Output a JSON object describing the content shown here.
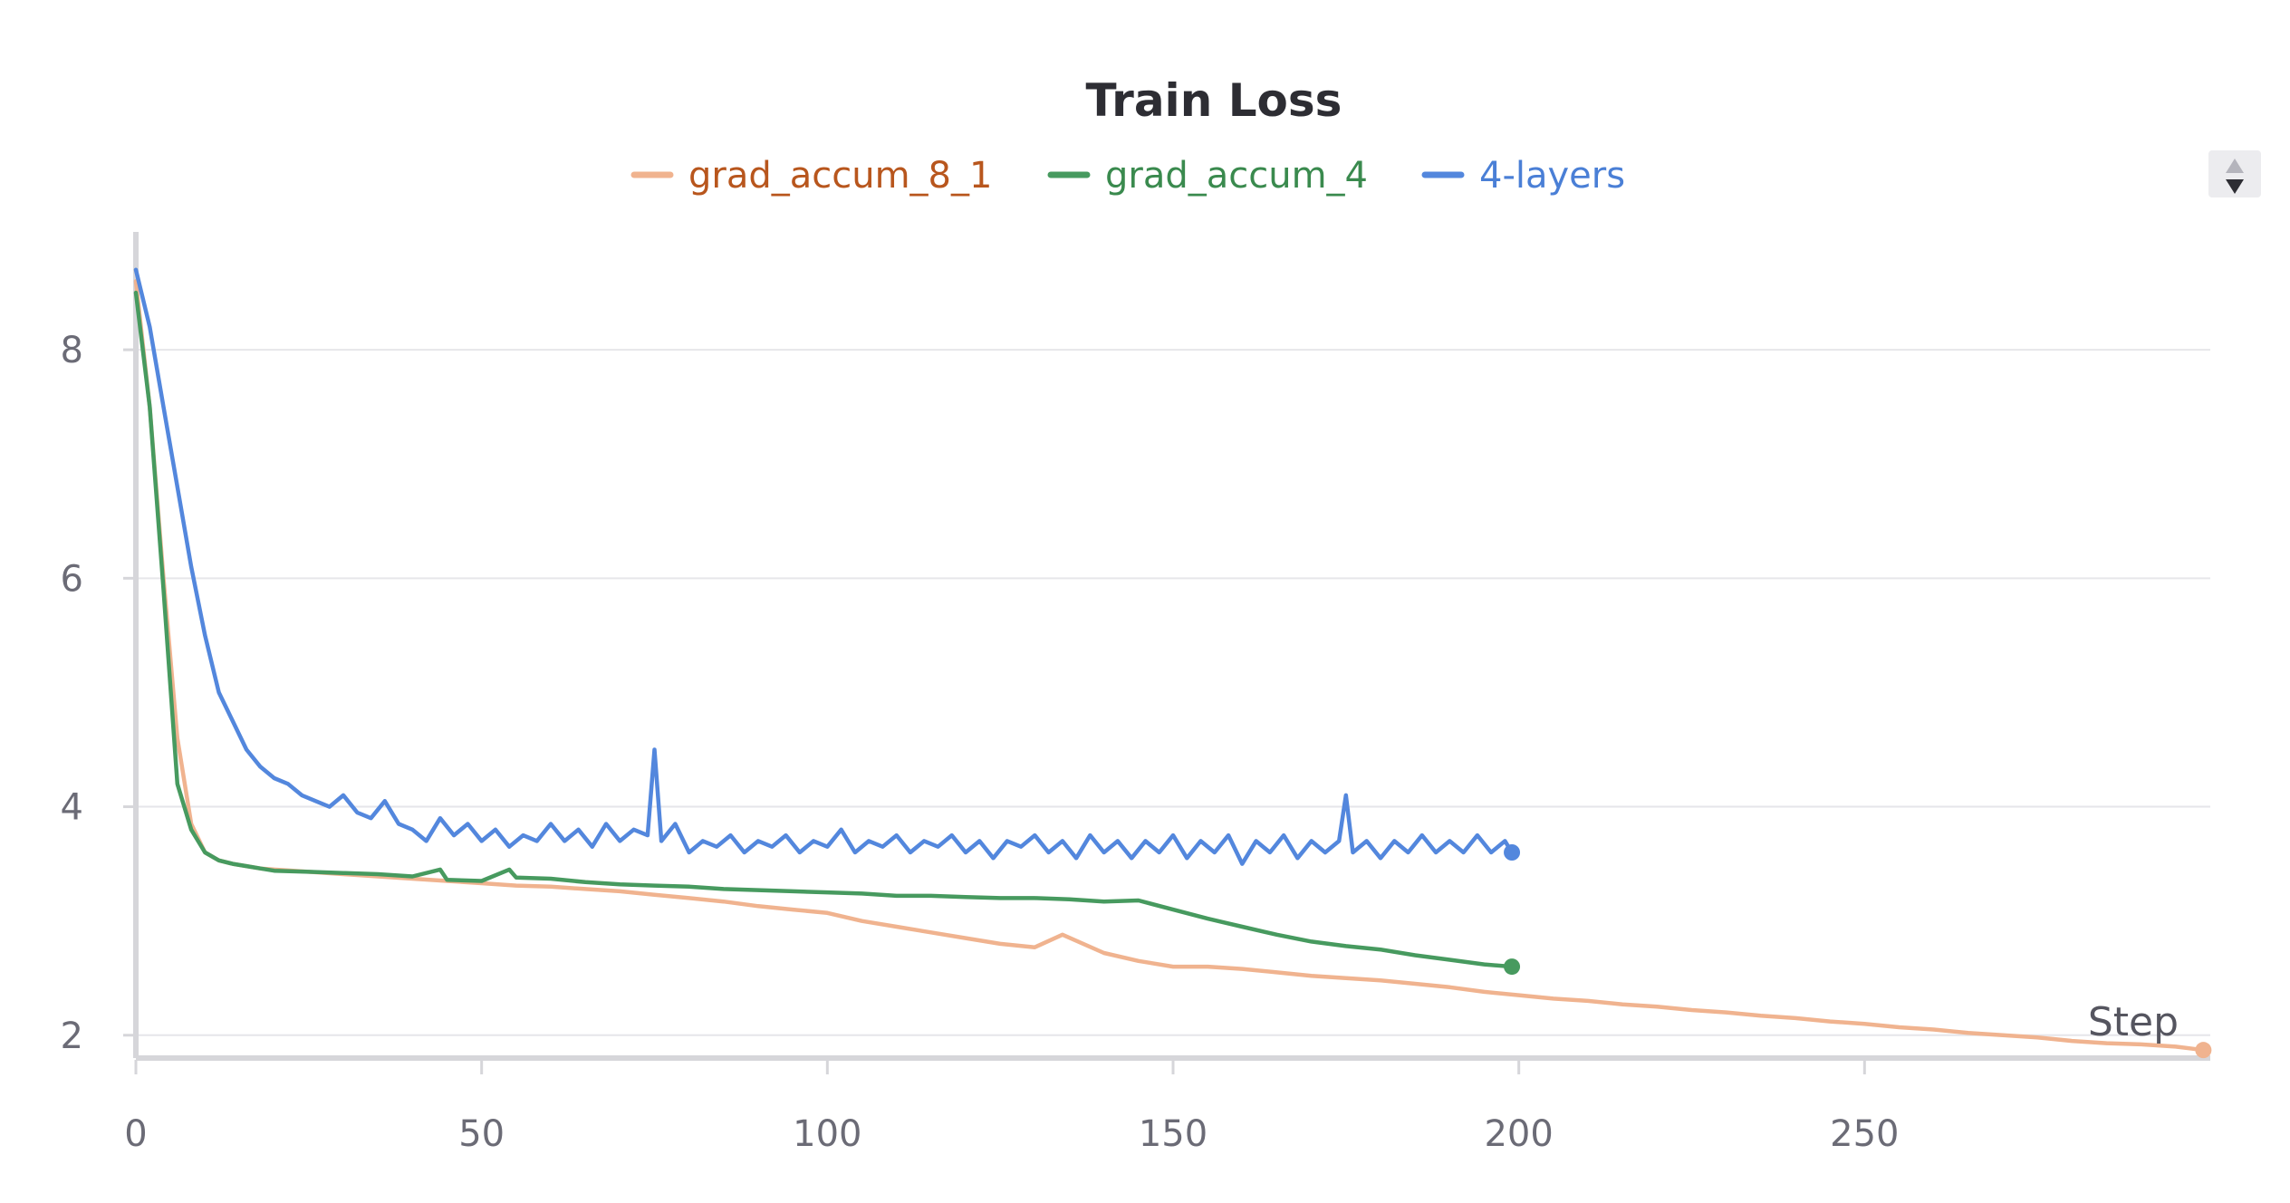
{
  "chart_data": {
    "type": "line",
    "title": "Train Loss",
    "xlabel": "Step",
    "ylabel": "",
    "xlim": [
      0,
      300
    ],
    "ylim": [
      1.8,
      9.0
    ],
    "xticks": [
      0,
      50,
      100,
      150,
      200,
      250
    ],
    "yticks": [
      2,
      4,
      6,
      8
    ],
    "grid": true,
    "legend_position": "top-center",
    "series": [
      {
        "name": "grad_accum_8_1",
        "color": "#f0b38f",
        "x": [
          0,
          2,
          4,
          6,
          8,
          10,
          12,
          14,
          16,
          18,
          20,
          25,
          30,
          35,
          40,
          45,
          50,
          55,
          60,
          65,
          70,
          75,
          80,
          85,
          90,
          95,
          100,
          105,
          110,
          115,
          120,
          125,
          130,
          134,
          140,
          145,
          150,
          155,
          160,
          165,
          170,
          175,
          180,
          185,
          190,
          195,
          200,
          205,
          210,
          215,
          220,
          225,
          230,
          235,
          240,
          245,
          250,
          255,
          260,
          265,
          270,
          275,
          280,
          285,
          290,
          295,
          299
        ],
        "values": [
          8.6,
          7.5,
          6.0,
          4.6,
          3.85,
          3.6,
          3.53,
          3.5,
          3.48,
          3.46,
          3.45,
          3.43,
          3.41,
          3.39,
          3.37,
          3.35,
          3.33,
          3.31,
          3.3,
          3.28,
          3.26,
          3.23,
          3.2,
          3.17,
          3.13,
          3.1,
          3.07,
          3.0,
          2.95,
          2.9,
          2.85,
          2.8,
          2.77,
          2.88,
          2.72,
          2.65,
          2.6,
          2.6,
          2.58,
          2.55,
          2.52,
          2.5,
          2.48,
          2.45,
          2.42,
          2.38,
          2.35,
          2.32,
          2.3,
          2.27,
          2.25,
          2.22,
          2.2,
          2.17,
          2.15,
          2.12,
          2.1,
          2.07,
          2.05,
          2.02,
          2.0,
          1.98,
          1.95,
          1.93,
          1.92,
          1.9,
          1.87
        ]
      },
      {
        "name": "grad_accum_4",
        "color": "#479a5f",
        "x": [
          0,
          2,
          4,
          6,
          8,
          10,
          12,
          14,
          16,
          18,
          20,
          25,
          30,
          35,
          40,
          44,
          45,
          50,
          54,
          55,
          60,
          65,
          70,
          75,
          80,
          85,
          90,
          95,
          100,
          105,
          110,
          115,
          120,
          125,
          130,
          135,
          140,
          145,
          150,
          155,
          160,
          165,
          170,
          175,
          180,
          185,
          190,
          195,
          199
        ],
        "values": [
          8.5,
          7.5,
          5.9,
          4.2,
          3.8,
          3.6,
          3.53,
          3.5,
          3.48,
          3.46,
          3.44,
          3.43,
          3.42,
          3.41,
          3.39,
          3.45,
          3.36,
          3.35,
          3.45,
          3.38,
          3.37,
          3.34,
          3.32,
          3.31,
          3.3,
          3.28,
          3.27,
          3.26,
          3.25,
          3.24,
          3.22,
          3.22,
          3.21,
          3.2,
          3.2,
          3.19,
          3.17,
          3.18,
          3.1,
          3.02,
          2.95,
          2.88,
          2.82,
          2.78,
          2.75,
          2.7,
          2.66,
          2.62,
          2.6
        ]
      },
      {
        "name": "4-layers",
        "color": "#5387dd",
        "x": [
          0,
          2,
          4,
          6,
          8,
          10,
          12,
          14,
          16,
          18,
          20,
          22,
          24,
          26,
          28,
          30,
          32,
          34,
          36,
          38,
          40,
          42,
          44,
          46,
          48,
          50,
          52,
          54,
          56,
          58,
          60,
          62,
          64,
          66,
          68,
          70,
          72,
          74,
          75,
          76,
          78,
          80,
          82,
          84,
          86,
          88,
          90,
          92,
          94,
          96,
          98,
          100,
          102,
          104,
          106,
          108,
          110,
          112,
          114,
          116,
          118,
          120,
          122,
          124,
          126,
          128,
          130,
          132,
          134,
          136,
          138,
          140,
          142,
          144,
          146,
          148,
          150,
          152,
          154,
          156,
          158,
          160,
          162,
          164,
          166,
          168,
          170,
          172,
          174,
          175,
          176,
          178,
          180,
          182,
          184,
          186,
          188,
          190,
          192,
          194,
          196,
          198,
          199
        ],
        "values": [
          8.7,
          8.2,
          7.5,
          6.8,
          6.1,
          5.5,
          5.0,
          4.75,
          4.5,
          4.35,
          4.25,
          4.2,
          4.1,
          4.05,
          4.0,
          4.1,
          3.95,
          3.9,
          4.05,
          3.85,
          3.8,
          3.7,
          3.9,
          3.75,
          3.85,
          3.7,
          3.8,
          3.65,
          3.75,
          3.7,
          3.85,
          3.7,
          3.8,
          3.65,
          3.85,
          3.7,
          3.8,
          3.75,
          4.5,
          3.7,
          3.85,
          3.6,
          3.7,
          3.65,
          3.75,
          3.6,
          3.7,
          3.65,
          3.75,
          3.6,
          3.7,
          3.65,
          3.8,
          3.6,
          3.7,
          3.65,
          3.75,
          3.6,
          3.7,
          3.65,
          3.75,
          3.6,
          3.7,
          3.55,
          3.7,
          3.65,
          3.75,
          3.6,
          3.7,
          3.55,
          3.75,
          3.6,
          3.7,
          3.55,
          3.7,
          3.6,
          3.75,
          3.55,
          3.7,
          3.6,
          3.75,
          3.5,
          3.7,
          3.6,
          3.75,
          3.55,
          3.7,
          3.6,
          3.7,
          4.1,
          3.6,
          3.7,
          3.55,
          3.7,
          3.6,
          3.75,
          3.6,
          3.7,
          3.6,
          3.75,
          3.6,
          3.7,
          3.6
        ]
      }
    ]
  }
}
